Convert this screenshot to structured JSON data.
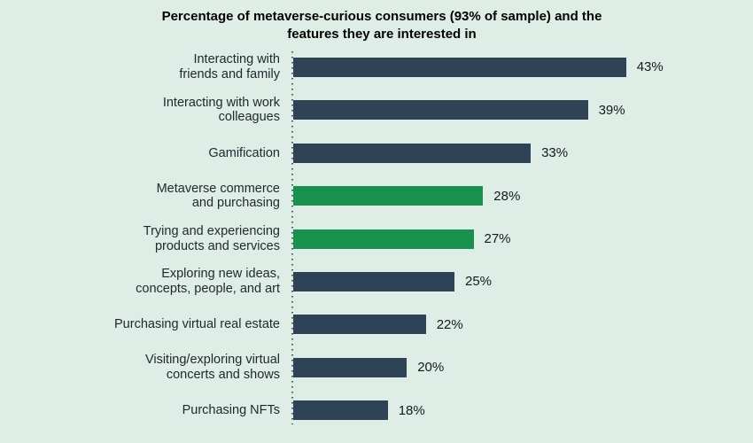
{
  "chart_data": {
    "type": "bar",
    "orientation": "horizontal",
    "title": "Percentage of metaverse-curious consumers (93% of sample) and the features they are interested in",
    "title_lines": [
      "Percentage of metaverse-curious consumers (93% of sample) and the",
      "features they are interested in"
    ],
    "unit": "%",
    "categories": [
      "Interacting with friends and family",
      "Interacting with work colleagues",
      "Gamification",
      "Metaverse commerce and purchasing",
      "Trying and experiencing products and services",
      "Exploring new ideas, concepts, people, and art",
      "Purchasing virtual real estate",
      "Visiting/exploring virtual concerts and shows",
      "Purchasing NFTs"
    ],
    "values": [
      43,
      39,
      33,
      28,
      27,
      25,
      22,
      20,
      18
    ],
    "value_labels": [
      "43%",
      "39%",
      "33%",
      "28%",
      "27%",
      "25%",
      "22%",
      "20%",
      "18%"
    ],
    "highlighted_categories": [
      "Metaverse commerce and purchasing",
      "Trying and experiencing products and services"
    ],
    "bars": [
      {
        "label_lines": [
          "Interacting with",
          "friends and family"
        ],
        "value": 43,
        "display": "43%",
        "highlight": false
      },
      {
        "label_lines": [
          "Interacting with work",
          "colleagues"
        ],
        "value": 39,
        "display": "39%",
        "highlight": false
      },
      {
        "label_lines": [
          "Gamification"
        ],
        "value": 33,
        "display": "33%",
        "highlight": false
      },
      {
        "label_lines": [
          "Metaverse commerce",
          "and purchasing"
        ],
        "value": 28,
        "display": "28%",
        "highlight": true
      },
      {
        "label_lines": [
          "Trying and experiencing",
          "products and services"
        ],
        "value": 27,
        "display": "27%",
        "highlight": true
      },
      {
        "label_lines": [
          "Exploring new ideas,",
          "concepts, people, and art"
        ],
        "value": 25,
        "display": "25%",
        "highlight": false
      },
      {
        "label_lines": [
          "Purchasing virtual real estate"
        ],
        "value": 22,
        "display": "22%",
        "highlight": false
      },
      {
        "label_lines": [
          "Visiting/exploring virtual",
          "concerts and shows"
        ],
        "value": 20,
        "display": "20%",
        "highlight": false
      },
      {
        "label_lines": [
          "Purchasing NFTs"
        ],
        "value": 18,
        "display": "18%",
        "highlight": false
      }
    ],
    "colors": {
      "background": "#deeee7",
      "bar_default": "#2e4356",
      "bar_highlight": "#18914f",
      "label_text": "#20292e",
      "title_text": "#000000",
      "axis_dots": "#2e404b"
    },
    "legend": "none",
    "grid": "off"
  }
}
